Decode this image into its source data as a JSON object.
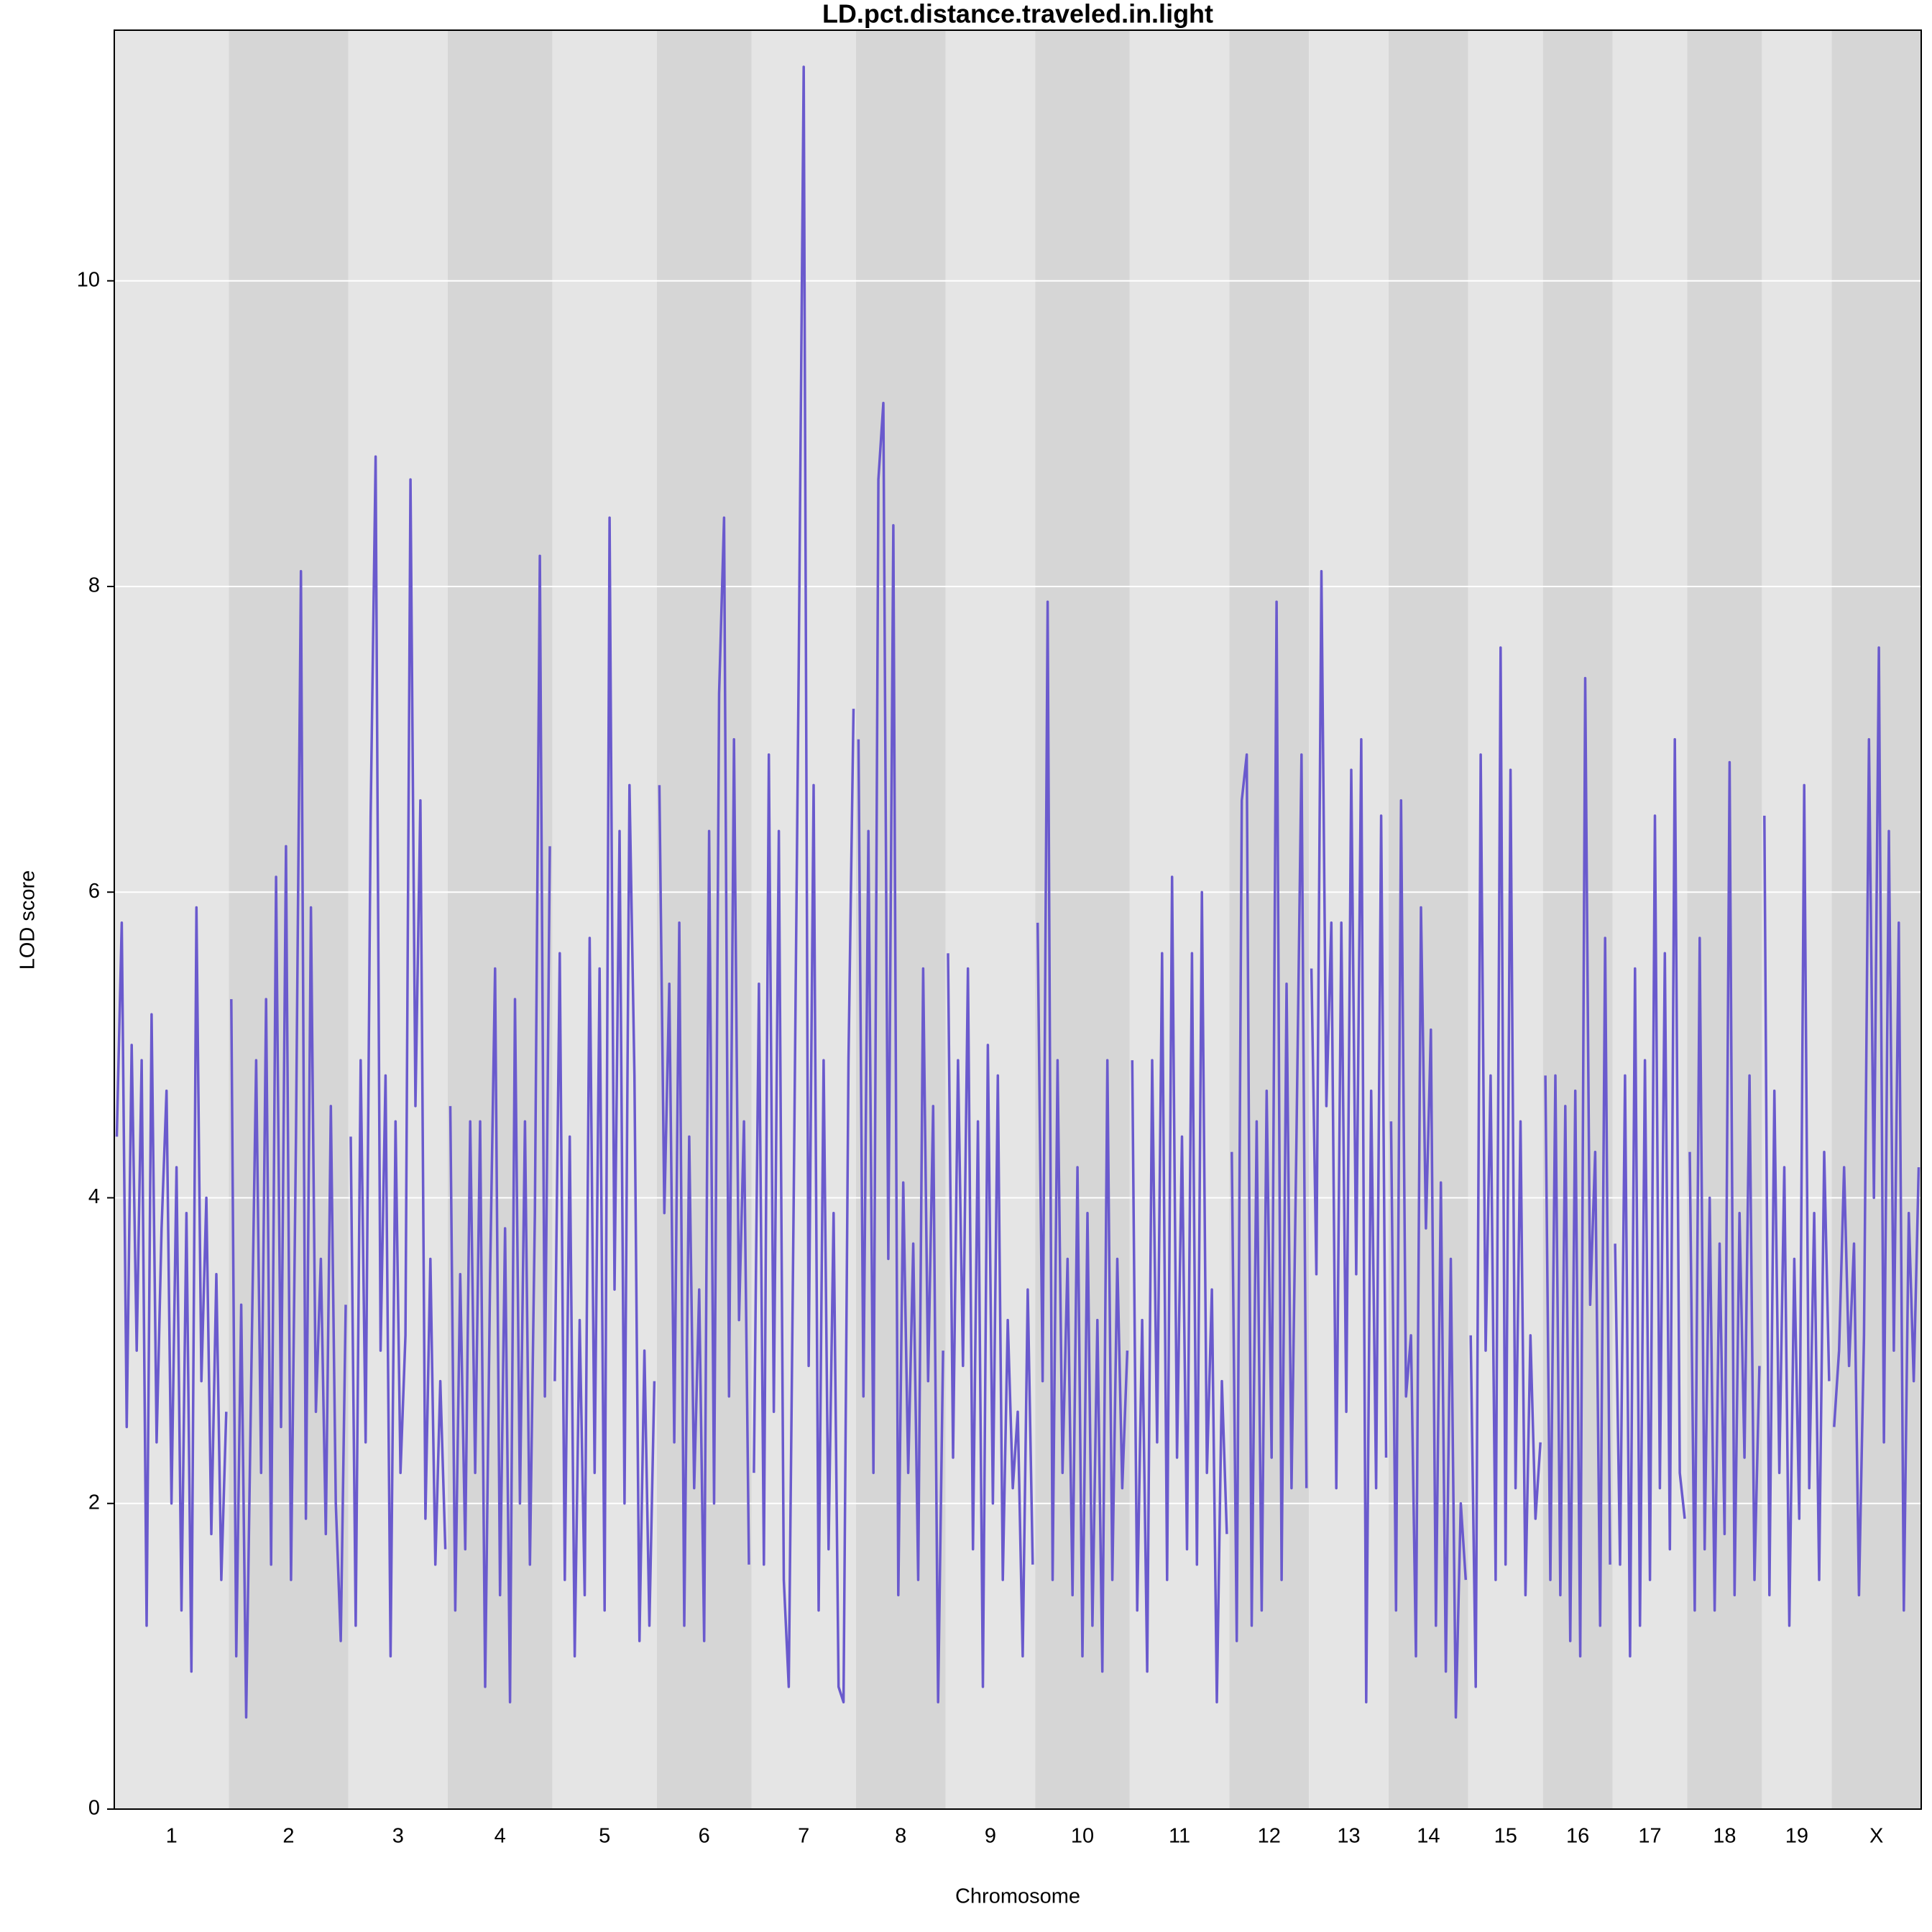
{
  "chart_data": {
    "type": "line",
    "title": "LD.pct.distance.traveled.in.light",
    "x_label": "Chromosome",
    "y_label": "LOD score",
    "color": "#6a5acd",
    "ylim": [
      0,
      11.64
    ],
    "yticks": [
      0,
      2,
      4,
      6,
      8,
      10
    ],
    "grid": true,
    "chromosomes": [
      {
        "label": "1",
        "values": [
          4.4,
          5.8,
          2.5,
          5.0,
          3.0,
          4.9,
          1.2,
          5.2,
          2.4,
          3.8,
          4.7,
          2.0,
          4.2,
          1.3,
          3.9,
          0.9,
          5.9,
          2.8,
          4.0,
          1.8,
          3.5,
          1.5,
          2.6
        ]
      },
      {
        "label": "2",
        "values": [
          5.3,
          1.0,
          3.3,
          0.6,
          2.8,
          4.9,
          2.2,
          5.3,
          1.6,
          6.1,
          2.5,
          6.3,
          1.5,
          4.4,
          8.1,
          1.9,
          5.9,
          2.6,
          3.6,
          1.8,
          4.6,
          2.0,
          1.1,
          3.3
        ]
      },
      {
        "label": "3",
        "values": [
          4.4,
          1.2,
          4.9,
          2.4,
          6.5,
          8.85,
          3.0,
          4.8,
          1.0,
          4.5,
          2.2,
          3.1,
          8.7,
          4.6,
          6.6,
          1.9,
          3.6,
          1.6,
          2.8,
          1.7
        ]
      },
      {
        "label": "4",
        "values": [
          4.6,
          1.3,
          3.5,
          1.7,
          4.5,
          2.2,
          4.5,
          0.8,
          3.5,
          5.5,
          1.4,
          3.8,
          0.7,
          5.3,
          2.0,
          4.5,
          1.6,
          3.9,
          8.2,
          2.7,
          6.3
        ]
      },
      {
        "label": "5",
        "values": [
          2.8,
          5.6,
          1.5,
          4.4,
          1.0,
          3.2,
          1.4,
          5.7,
          2.2,
          5.5,
          1.3,
          8.45,
          3.4,
          6.4,
          2.0,
          6.7,
          4.8,
          1.1,
          3.0,
          1.2,
          2.8
        ]
      },
      {
        "label": "6",
        "values": [
          6.7,
          3.9,
          5.4,
          2.4,
          5.8,
          1.2,
          4.4,
          2.1,
          3.4,
          1.1,
          6.4,
          2.0,
          7.3,
          8.45,
          2.7,
          7.0,
          3.2,
          4.5,
          1.6
        ]
      },
      {
        "label": "7",
        "values": [
          2.2,
          5.4,
          1.6,
          6.9,
          2.6,
          6.4,
          1.5,
          0.8,
          4.0,
          7.5,
          11.4,
          2.9,
          6.7,
          1.3,
          4.9,
          1.7,
          3.9,
          0.8,
          0.7,
          4.9,
          7.2
        ]
      },
      {
        "label": "8",
        "values": [
          7.0,
          2.7,
          6.4,
          2.2,
          8.7,
          9.2,
          3.6,
          8.4,
          1.4,
          4.1,
          2.2,
          3.7,
          1.5,
          5.5,
          2.8,
          4.6,
          0.7,
          3.0
        ]
      },
      {
        "label": "9",
        "values": [
          5.6,
          2.3,
          4.9,
          2.9,
          5.5,
          1.7,
          4.5,
          0.8,
          5.0,
          2.0,
          4.8,
          1.5,
          3.2,
          2.1,
          2.6,
          1.0,
          3.4,
          1.6
        ]
      },
      {
        "label": "10",
        "values": [
          5.8,
          2.8,
          7.9,
          1.5,
          4.9,
          2.2,
          3.6,
          1.4,
          4.2,
          1.0,
          3.9,
          1.2,
          3.2,
          0.9,
          4.9,
          1.5,
          3.6,
          2.1,
          3.0
        ]
      },
      {
        "label": "11",
        "values": [
          4.9,
          1.3,
          3.2,
          0.9,
          4.9,
          2.4,
          5.6,
          1.5,
          6.1,
          2.3,
          4.4,
          1.7,
          5.6,
          1.6,
          6.0,
          2.2,
          3.4,
          0.7,
          2.8,
          1.8
        ]
      },
      {
        "label": "12",
        "values": [
          4.3,
          1.1,
          6.6,
          6.9,
          1.2,
          4.5,
          1.3,
          4.7,
          2.3,
          7.9,
          1.5,
          5.4,
          2.1,
          4.4,
          6.9,
          2.1
        ]
      },
      {
        "label": "13",
        "values": [
          5.5,
          3.5,
          8.1,
          4.6,
          5.8,
          2.1,
          5.8,
          2.6,
          6.8,
          3.5,
          7.0,
          0.7,
          4.7,
          2.1,
          6.5,
          2.3
        ]
      },
      {
        "label": "14",
        "values": [
          4.5,
          1.3,
          6.6,
          2.7,
          3.1,
          1.0,
          5.9,
          3.8,
          5.1,
          1.2,
          4.1,
          0.9,
          3.6,
          0.6,
          2.0,
          1.5
        ]
      },
      {
        "label": "15",
        "values": [
          3.1,
          0.8,
          6.9,
          3.0,
          4.8,
          1.5,
          7.6,
          1.6,
          6.8,
          2.1,
          4.5,
          1.4,
          3.1,
          1.9,
          2.4
        ]
      },
      {
        "label": "16",
        "values": [
          4.8,
          1.5,
          4.8,
          1.4,
          4.6,
          1.1,
          4.7,
          1.0,
          7.4,
          3.3,
          4.3,
          1.2,
          5.7,
          1.6
        ]
      },
      {
        "label": "17",
        "values": [
          3.7,
          1.6,
          4.8,
          1.0,
          5.5,
          1.2,
          4.9,
          1.5,
          6.5,
          2.1,
          5.6,
          1.7,
          7.0,
          2.2,
          1.9
        ]
      },
      {
        "label": "18",
        "values": [
          4.3,
          1.3,
          5.7,
          1.7,
          4.0,
          1.3,
          3.7,
          1.8,
          6.85,
          1.4,
          3.9,
          2.3,
          4.8,
          1.5,
          2.9
        ]
      },
      {
        "label": "19",
        "values": [
          6.5,
          1.4,
          4.7,
          2.2,
          4.2,
          1.2,
          3.6,
          1.9,
          6.7,
          2.1,
          3.9,
          1.5,
          4.3,
          2.8
        ]
      },
      {
        "label": "X",
        "values": [
          2.5,
          3.0,
          4.2,
          2.9,
          3.7,
          1.4,
          3.1,
          7.0,
          4.0,
          7.6,
          2.4,
          6.4,
          3.0,
          5.8,
          1.3,
          3.9,
          2.8,
          4.2
        ]
      }
    ]
  }
}
